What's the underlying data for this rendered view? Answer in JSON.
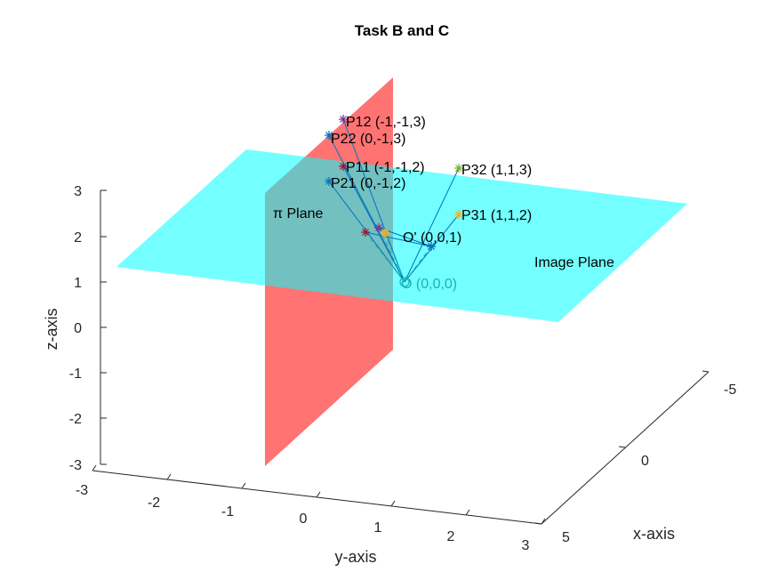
{
  "chart_data": {
    "type": "scatter",
    "projection": "3d",
    "title": "Task B and C",
    "xlabel": "x-axis",
    "ylabel": "y-axis",
    "zlabel": "z-axis",
    "xlim": [
      -5,
      5
    ],
    "ylim": [
      -3,
      3
    ],
    "zlim": [
      -3,
      3
    ],
    "x_ticks": [
      "-5",
      "0",
      "5"
    ],
    "y_ticks": [
      "-3",
      "-2",
      "-1",
      "0",
      "1",
      "2",
      "3"
    ],
    "z_ticks": [
      "-3",
      "-2",
      "-1",
      "0",
      "1",
      "2",
      "3"
    ],
    "grid": false,
    "planes": [
      {
        "label": "π Plane",
        "color": "#ff0000",
        "opacity": 0.55
      },
      {
        "label": "Image Plane",
        "color": "#00ffff",
        "opacity": 0.55
      }
    ],
    "origin": {
      "label": "O (0,0,0)",
      "color": "#19b2b2"
    },
    "image_center": {
      "label": "O' (0,0,1)"
    },
    "points": [
      {
        "label": "P12 (-1,-1,3)",
        "color": "#7e2f8e"
      },
      {
        "label": "P22 (0,-1,3)",
        "color": "#0072bd"
      },
      {
        "label": "P11 (-1,-1,2)",
        "color": "#a2142f"
      },
      {
        "label": "P21 (0,-1,2)",
        "color": "#0072bd"
      },
      {
        "label": "P32 (1,1,3)",
        "color": "#77ac30"
      },
      {
        "label": "P31 (1,1,2)",
        "color": "#edb120"
      }
    ],
    "projections": [
      {
        "color": "#a2142f"
      },
      {
        "color": "#7e2f8e"
      },
      {
        "color": "#edb120"
      },
      {
        "color": "#7e2f8e"
      },
      {
        "color": "#0072bd"
      }
    ]
  }
}
